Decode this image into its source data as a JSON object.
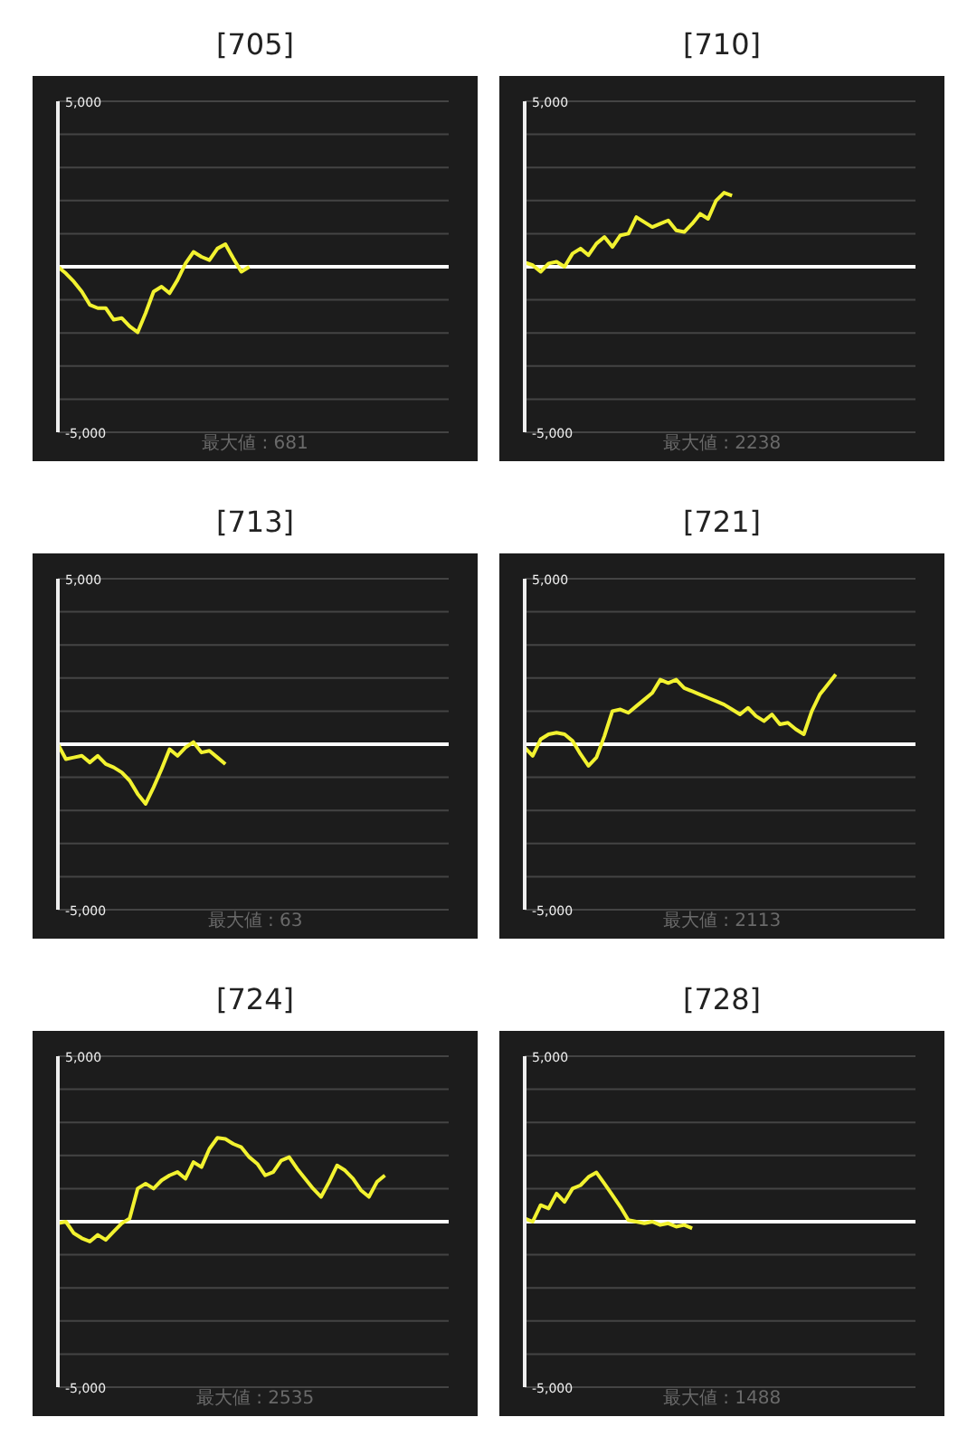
{
  "chart_data": [
    {
      "type": "line",
      "title": "[705]",
      "categories": [
        null,
        null,
        null,
        null,
        null,
        null,
        null,
        null,
        null,
        null,
        null,
        null,
        null,
        null,
        null,
        null,
        null,
        null,
        null,
        null,
        null,
        null,
        null,
        null,
        null,
        null,
        null,
        null,
        null,
        null,
        null,
        null,
        null,
        null,
        null,
        null,
        null,
        null,
        null,
        null,
        null,
        null,
        null,
        null,
        null,
        null,
        null,
        null,
        null,
        null
      ],
      "series": [
        {
          "color": "#f2f230",
          "values": [
            0,
            -200,
            -450,
            -750,
            -1150,
            -1250,
            -1250,
            -1600,
            -1550,
            -1800,
            -1980,
            -1400,
            -750,
            -600,
            -800,
            -400,
            100,
            450,
            300,
            200,
            550,
            681,
            250,
            -150,
            0,
            null,
            null,
            null,
            null,
            null,
            null,
            null,
            null,
            null,
            null,
            null,
            null,
            null,
            null,
            null,
            null,
            null,
            null,
            null,
            null,
            null,
            null,
            null,
            null,
            null
          ]
        }
      ],
      "ylim": [
        -5000,
        5000
      ],
      "yticks": [
        {
          "value": 5000,
          "label": "5,000"
        },
        {
          "value": 4000,
          "label": null
        },
        {
          "value": 3000,
          "label": null
        },
        {
          "value": 2000,
          "label": null
        },
        {
          "value": 1000,
          "label": null
        },
        {
          "value": 0,
          "label": null
        },
        {
          "value": -1000,
          "label": null
        },
        {
          "value": -2000,
          "label": null
        },
        {
          "value": -3000,
          "label": null
        },
        {
          "value": -4000,
          "label": null
        },
        {
          "value": -5000,
          "label": "-5,000"
        }
      ],
      "tick_labels": "y",
      "grid": "y",
      "legend": false,
      "marker": "none",
      "line_style": "solid",
      "ref_lines": [
        {
          "axis": "y",
          "value": 0,
          "color": "#ffffff"
        }
      ],
      "annotations": [
        "最大値 : 681"
      ]
    },
    {
      "type": "line",
      "title": "[710]",
      "categories": [
        null,
        null,
        null,
        null,
        null,
        null,
        null,
        null,
        null,
        null,
        null,
        null,
        null,
        null,
        null,
        null,
        null,
        null,
        null,
        null,
        null,
        null,
        null,
        null,
        null,
        null,
        null,
        null,
        null,
        null,
        null,
        null,
        null,
        null,
        null,
        null,
        null,
        null,
        null,
        null,
        null,
        null,
        null,
        null,
        null,
        null,
        null,
        null,
        null,
        null
      ],
      "series": [
        {
          "color": "#f2f230",
          "values": [
            130,
            50,
            -150,
            100,
            150,
            0,
            400,
            550,
            350,
            700,
            900,
            600,
            950,
            1000,
            1500,
            1350,
            1200,
            1300,
            1400,
            1100,
            1050,
            1300,
            1600,
            1450,
            2000,
            2238,
            2150,
            null,
            null,
            null,
            null,
            null,
            null,
            null,
            null,
            null,
            null,
            null,
            null,
            null,
            null,
            null,
            null,
            null,
            null,
            null,
            null,
            null,
            null,
            null
          ]
        }
      ],
      "ylim": [
        -5000,
        5000
      ],
      "yticks": [
        {
          "value": 5000,
          "label": "5,000"
        },
        {
          "value": 4000,
          "label": null
        },
        {
          "value": 3000,
          "label": null
        },
        {
          "value": 2000,
          "label": null
        },
        {
          "value": 1000,
          "label": null
        },
        {
          "value": 0,
          "label": null
        },
        {
          "value": -1000,
          "label": null
        },
        {
          "value": -2000,
          "label": null
        },
        {
          "value": -3000,
          "label": null
        },
        {
          "value": -4000,
          "label": null
        },
        {
          "value": -5000,
          "label": "-5,000"
        }
      ],
      "tick_labels": "y",
      "grid": "y",
      "legend": false,
      "marker": "none",
      "line_style": "solid",
      "ref_lines": [
        {
          "axis": "y",
          "value": 0,
          "color": "#ffffff"
        }
      ],
      "annotations": [
        "最大値 : 2238"
      ]
    },
    {
      "type": "line",
      "title": "[713]",
      "categories": [
        null,
        null,
        null,
        null,
        null,
        null,
        null,
        null,
        null,
        null,
        null,
        null,
        null,
        null,
        null,
        null,
        null,
        null,
        null,
        null,
        null,
        null,
        null,
        null,
        null,
        null,
        null,
        null,
        null,
        null,
        null,
        null,
        null,
        null,
        null,
        null,
        null,
        null,
        null,
        null,
        null,
        null,
        null,
        null,
        null,
        null,
        null,
        null,
        null,
        null
      ],
      "series": [
        {
          "color": "#f2f230",
          "values": [
            0,
            -450,
            -400,
            -350,
            -550,
            -350,
            -600,
            -700,
            -850,
            -1100,
            -1500,
            -1800,
            -1300,
            -750,
            -150,
            -350,
            -100,
            63,
            -250,
            -200,
            -400,
            -600,
            null,
            null,
            null,
            null,
            null,
            null,
            null,
            null,
            null,
            null,
            null,
            null,
            null,
            null,
            null,
            null,
            null,
            null,
            null,
            null,
            null,
            null,
            null,
            null,
            null,
            null,
            null,
            null
          ]
        }
      ],
      "ylim": [
        -5000,
        5000
      ],
      "yticks": [
        {
          "value": 5000,
          "label": "5,000"
        },
        {
          "value": 4000,
          "label": null
        },
        {
          "value": 3000,
          "label": null
        },
        {
          "value": 2000,
          "label": null
        },
        {
          "value": 1000,
          "label": null
        },
        {
          "value": 0,
          "label": null
        },
        {
          "value": -1000,
          "label": null
        },
        {
          "value": -2000,
          "label": null
        },
        {
          "value": -3000,
          "label": null
        },
        {
          "value": -4000,
          "label": null
        },
        {
          "value": -5000,
          "label": "-5,000"
        }
      ],
      "tick_labels": "y",
      "grid": "y",
      "legend": false,
      "marker": "none",
      "line_style": "solid",
      "ref_lines": [
        {
          "axis": "y",
          "value": 0,
          "color": "#ffffff"
        }
      ],
      "annotations": [
        "最大値 : 63"
      ]
    },
    {
      "type": "line",
      "title": "[721]",
      "categories": [
        null,
        null,
        null,
        null,
        null,
        null,
        null,
        null,
        null,
        null,
        null,
        null,
        null,
        null,
        null,
        null,
        null,
        null,
        null,
        null,
        null,
        null,
        null,
        null,
        null,
        null,
        null,
        null,
        null,
        null,
        null,
        null,
        null,
        null,
        null,
        null,
        null,
        null,
        null,
        null,
        null,
        null,
        null,
        null,
        null,
        null,
        null,
        null,
        null,
        null
      ],
      "series": [
        {
          "color": "#f2f230",
          "values": [
            -100,
            -350,
            150,
            300,
            350,
            300,
            100,
            -300,
            -650,
            -400,
            250,
            1000,
            1050,
            950,
            1150,
            1350,
            1550,
            1950,
            1850,
            1950,
            1700,
            1600,
            1500,
            1400,
            1300,
            1200,
            1050,
            900,
            1100,
            850,
            700,
            900,
            600,
            650,
            450,
            300,
            1000,
            1500,
            1800,
            2113,
            null,
            null,
            null,
            null,
            null,
            null,
            null,
            null,
            null,
            null
          ]
        }
      ],
      "ylim": [
        -5000,
        5000
      ],
      "yticks": [
        {
          "value": 5000,
          "label": "5,000"
        },
        {
          "value": 4000,
          "label": null
        },
        {
          "value": 3000,
          "label": null
        },
        {
          "value": 2000,
          "label": null
        },
        {
          "value": 1000,
          "label": null
        },
        {
          "value": 0,
          "label": null
        },
        {
          "value": -1000,
          "label": null
        },
        {
          "value": -2000,
          "label": null
        },
        {
          "value": -3000,
          "label": null
        },
        {
          "value": -4000,
          "label": null
        },
        {
          "value": -5000,
          "label": "-5,000"
        }
      ],
      "tick_labels": "y",
      "grid": "y",
      "legend": false,
      "marker": "none",
      "line_style": "solid",
      "ref_lines": [
        {
          "axis": "y",
          "value": 0,
          "color": "#ffffff"
        }
      ],
      "annotations": [
        "最大値 : 2113"
      ]
    },
    {
      "type": "line",
      "title": "[724]",
      "categories": [
        null,
        null,
        null,
        null,
        null,
        null,
        null,
        null,
        null,
        null,
        null,
        null,
        null,
        null,
        null,
        null,
        null,
        null,
        null,
        null,
        null,
        null,
        null,
        null,
        null,
        null,
        null,
        null,
        null,
        null,
        null,
        null,
        null,
        null,
        null,
        null,
        null,
        null,
        null,
        null,
        null,
        null,
        null,
        null,
        null,
        null,
        null,
        null,
        null,
        null
      ],
      "series": [
        {
          "color": "#f2f230",
          "values": [
            -50,
            0,
            -350,
            -500,
            -600,
            -400,
            -550,
            -300,
            -50,
            100,
            1000,
            1150,
            1000,
            1250,
            1400,
            1500,
            1300,
            1800,
            1650,
            2200,
            2535,
            2500,
            2350,
            2250,
            1950,
            1750,
            1400,
            1500,
            1850,
            1950,
            1600,
            1300,
            1000,
            750,
            1200,
            1700,
            1550,
            1300,
            950,
            750,
            1200,
            1400,
            null,
            null,
            null,
            null,
            null,
            null,
            null,
            null
          ]
        }
      ],
      "ylim": [
        -5000,
        5000
      ],
      "yticks": [
        {
          "value": 5000,
          "label": "5,000"
        },
        {
          "value": 4000,
          "label": null
        },
        {
          "value": 3000,
          "label": null
        },
        {
          "value": 2000,
          "label": null
        },
        {
          "value": 1000,
          "label": null
        },
        {
          "value": 0,
          "label": null
        },
        {
          "value": -1000,
          "label": null
        },
        {
          "value": -2000,
          "label": null
        },
        {
          "value": -3000,
          "label": null
        },
        {
          "value": -4000,
          "label": null
        },
        {
          "value": -5000,
          "label": "-5,000"
        }
      ],
      "tick_labels": "y",
      "grid": "y",
      "legend": false,
      "marker": "none",
      "line_style": "solid",
      "ref_lines": [
        {
          "axis": "y",
          "value": 0,
          "color": "#ffffff"
        }
      ],
      "annotations": [
        "最大値 : 2535"
      ]
    },
    {
      "type": "line",
      "title": "[728]",
      "categories": [
        null,
        null,
        null,
        null,
        null,
        null,
        null,
        null,
        null,
        null,
        null,
        null,
        null,
        null,
        null,
        null,
        null,
        null,
        null,
        null,
        null,
        null,
        null,
        null,
        null,
        null,
        null,
        null,
        null,
        null,
        null,
        null,
        null,
        null,
        null,
        null,
        null,
        null,
        null,
        null,
        null,
        null,
        null,
        null,
        null,
        null,
        null,
        null,
        null,
        null
      ],
      "series": [
        {
          "color": "#f2f230",
          "values": [
            100,
            0,
            500,
            400,
            850,
            600,
            1000,
            1100,
            1350,
            1488,
            1150,
            800,
            450,
            50,
            0,
            -50,
            0,
            -100,
            -50,
            -150,
            -100,
            -200,
            null,
            null,
            null,
            null,
            null,
            null,
            null,
            null,
            null,
            null,
            null,
            null,
            null,
            null,
            null,
            null,
            null,
            null,
            null,
            null,
            null,
            null,
            null,
            null,
            null,
            null,
            null,
            null
          ]
        }
      ],
      "ylim": [
        -5000,
        5000
      ],
      "yticks": [
        {
          "value": 5000,
          "label": "5,000"
        },
        {
          "value": 4000,
          "label": null
        },
        {
          "value": 3000,
          "label": null
        },
        {
          "value": 2000,
          "label": null
        },
        {
          "value": 1000,
          "label": null
        },
        {
          "value": 0,
          "label": null
        },
        {
          "value": -1000,
          "label": null
        },
        {
          "value": -2000,
          "label": null
        },
        {
          "value": -3000,
          "label": null
        },
        {
          "value": -4000,
          "label": null
        },
        {
          "value": -5000,
          "label": "-5,000"
        }
      ],
      "tick_labels": "y",
      "grid": "y",
      "legend": false,
      "marker": "none",
      "line_style": "solid",
      "ref_lines": [
        {
          "axis": "y",
          "value": 0,
          "color": "#ffffff"
        }
      ],
      "annotations": [
        "最大値 : 1488"
      ]
    }
  ]
}
